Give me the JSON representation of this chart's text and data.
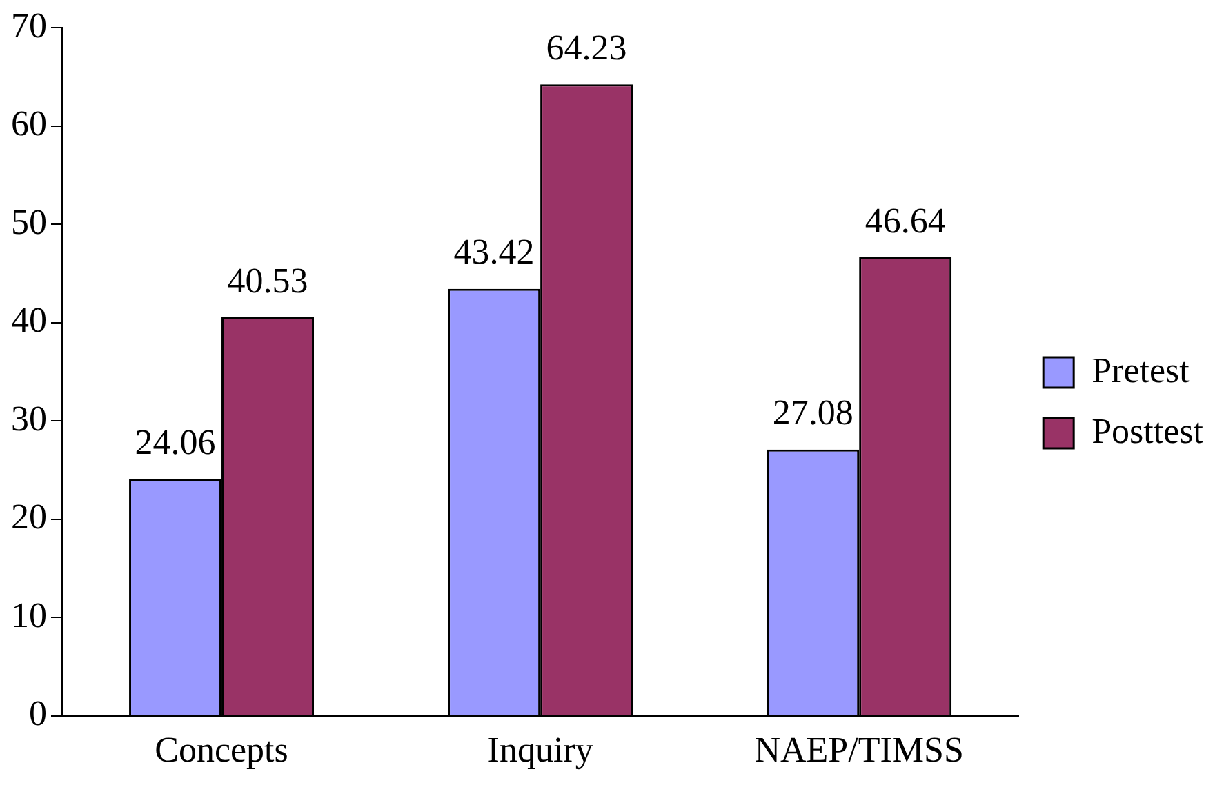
{
  "chart_data": {
    "type": "bar",
    "categories": [
      "Concepts",
      "Inquiry",
      "NAEP/TIMSS"
    ],
    "series": [
      {
        "name": "Pretest",
        "color": "#9999ff",
        "values": [
          24.06,
          43.42,
          27.08
        ]
      },
      {
        "name": "Posttest",
        "color": "#993366",
        "values": [
          40.53,
          64.23,
          46.64
        ]
      }
    ],
    "ylim": [
      0,
      70
    ],
    "yticks": [
      0,
      10,
      20,
      30,
      40,
      50,
      60,
      70
    ],
    "grid": false,
    "legend": "right",
    "data_labels": true
  }
}
